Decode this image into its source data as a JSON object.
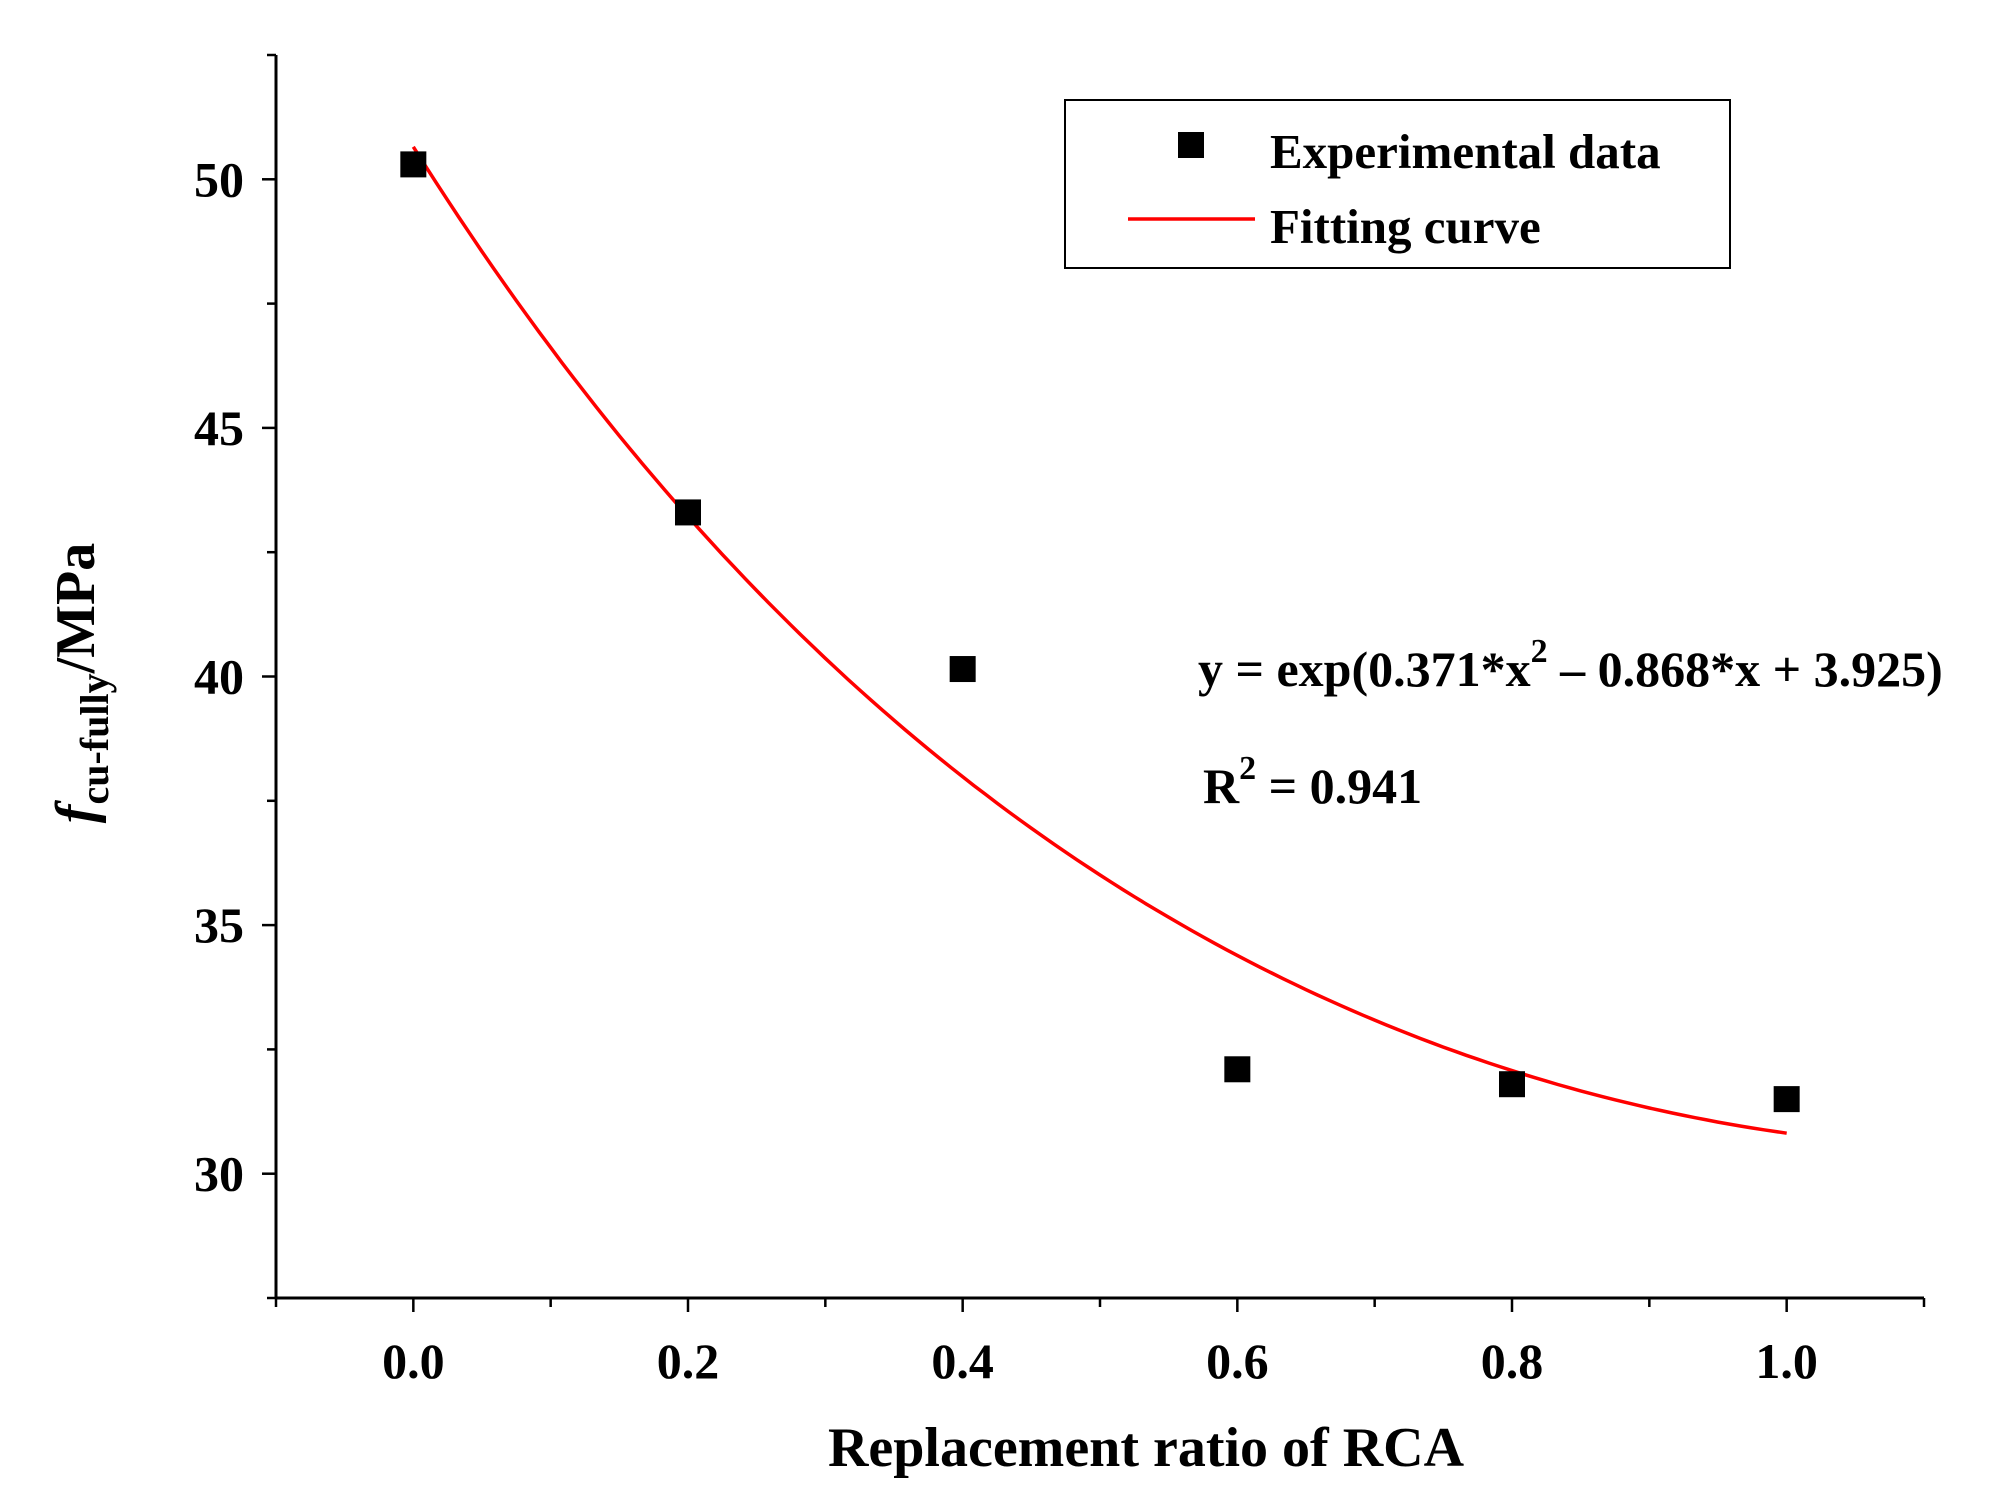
{
  "chart_data": {
    "type": "scatter",
    "title": "",
    "xlabel": "Replacement ratio of RCA",
    "ylabel": {
      "italic": "f",
      "subscript": "cu-fully",
      "rest": "/MPa"
    },
    "xlim": [
      -0.1,
      1.1
    ],
    "ylim": [
      27.5,
      52.5
    ],
    "xticks": [
      0.0,
      0.2,
      0.4,
      0.6,
      0.8,
      1.0
    ],
    "xtick_labels": [
      "0.0",
      "0.2",
      "0.4",
      "0.6",
      "0.8",
      "1.0"
    ],
    "yticks": [
      30,
      35,
      40,
      45,
      50
    ],
    "ytick_labels": [
      "30",
      "35",
      "40",
      "45",
      "50"
    ],
    "series": [
      {
        "name": "Experimental data",
        "kind": "scatter",
        "marker": "square",
        "color": "#000000",
        "x": [
          0.0,
          0.2,
          0.4,
          0.6,
          0.8,
          1.0
        ],
        "y": [
          50.3,
          43.3,
          40.15,
          32.1,
          31.8,
          31.5
        ]
      },
      {
        "name": "Fitting curve",
        "kind": "line",
        "color": "#ff0000",
        "equation": {
          "a": 0.371,
          "b": -0.868,
          "c": 3.925
        },
        "x_range": [
          0.0,
          1.0
        ]
      }
    ],
    "legend": {
      "position": "top-right",
      "items": [
        "Experimental data",
        "Fitting curve"
      ]
    },
    "annotations": {
      "equation_pre": "y = exp(0.371*x",
      "equation_sup": "2",
      "equation_post": " – 0.868*x + 3.925)",
      "r2_pre": "R",
      "r2_sup": "2",
      "r2_post": " = 0.941"
    }
  }
}
